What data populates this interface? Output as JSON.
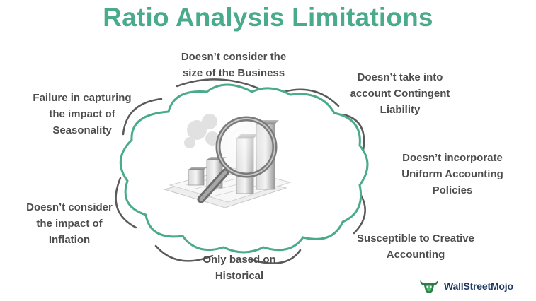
{
  "title": "Ratio Analysis Limitations",
  "limitations": [
    {
      "line1": "Doesn’t consider the",
      "line2": "size of the Business",
      "line3": ""
    },
    {
      "line1": "Doesn’t take into",
      "line2": "account Contingent",
      "line3": "Liability"
    },
    {
      "line1": "Doesn’t incorporate",
      "line2": "Uniform Accounting",
      "line3": "Policies"
    },
    {
      "line1": "Susceptible to Creative",
      "line2": "Accounting",
      "line3": ""
    },
    {
      "line1": "Only based on",
      "line2": "Historical",
      "line3": ""
    },
    {
      "line1": "Doesn’t consider",
      "line2": "the impact of",
      "line3": "Inflation"
    },
    {
      "line1": "Failure in capturing",
      "line2": "the impact of",
      "line3": "Seasonality"
    }
  ],
  "logo": {
    "text": "WallStreetMojo",
    "color": "#1f3b63",
    "icon": "bull-logo-icon"
  },
  "colors": {
    "accent": "#4aaa8c",
    "text": "#4d4d4d",
    "cloud_outline": "#4aaa8c",
    "cloud_shadow": "#555555"
  }
}
